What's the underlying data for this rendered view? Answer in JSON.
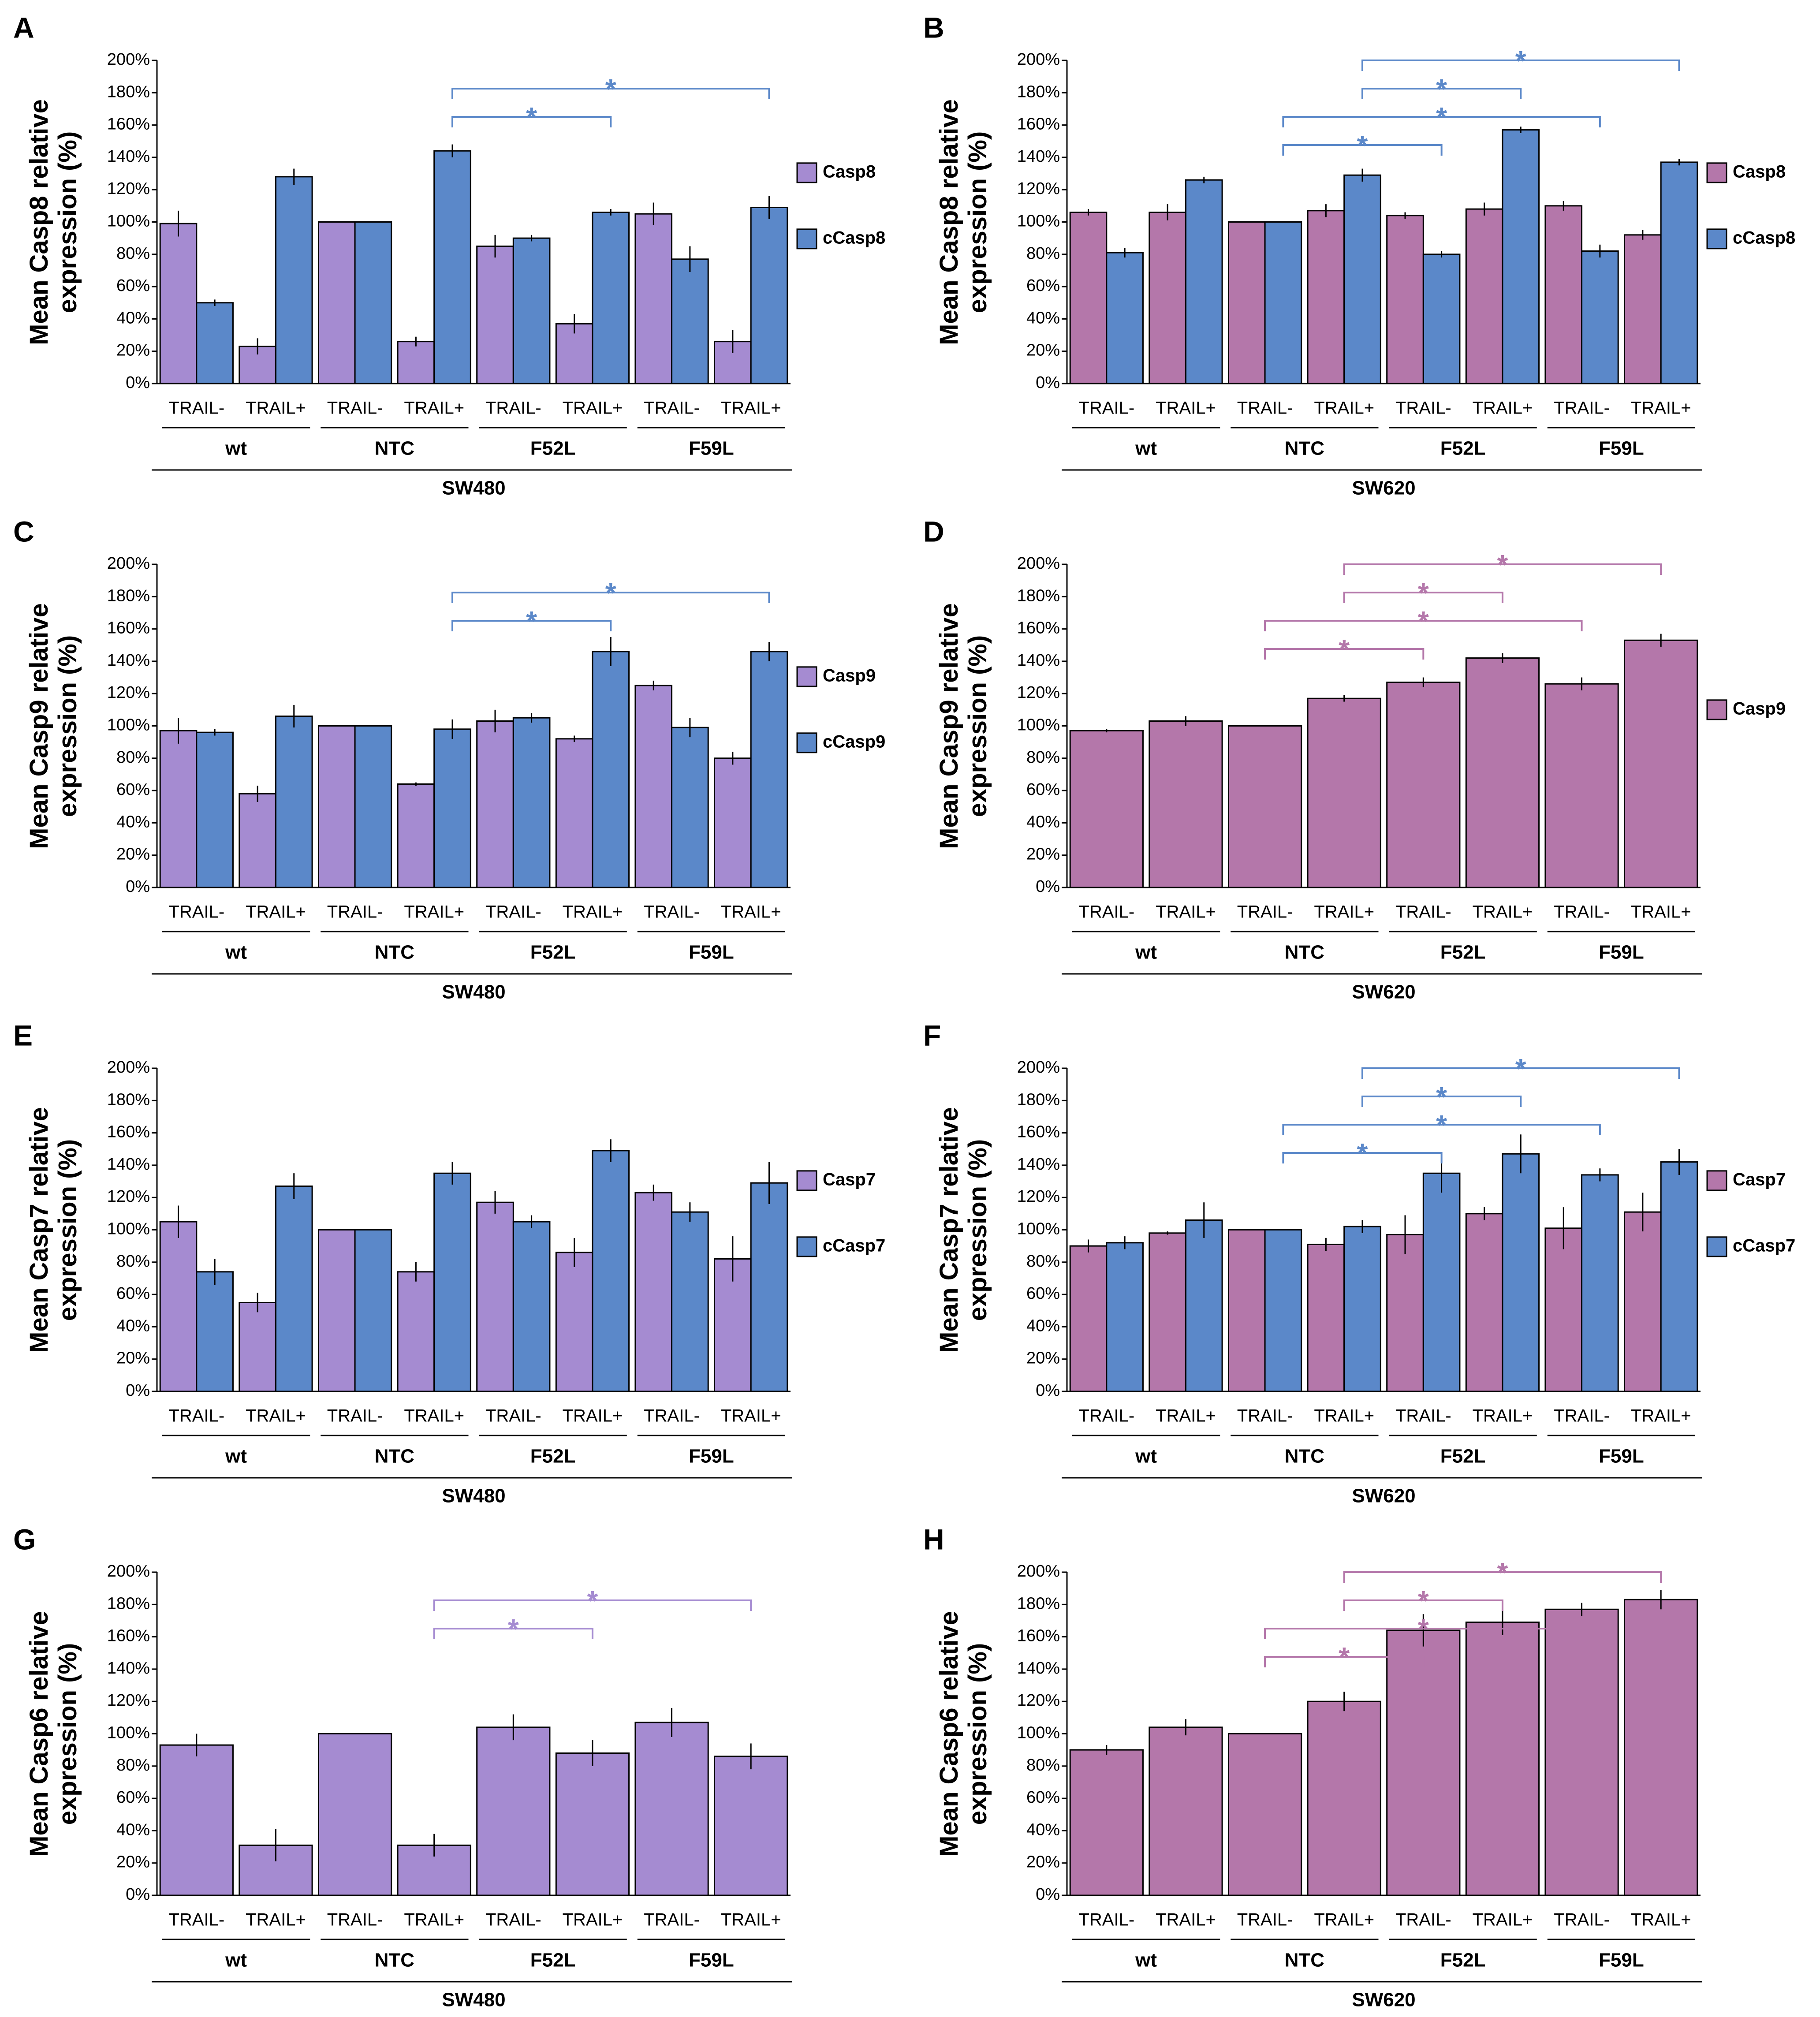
{
  "chart_data": [
    {
      "type": "bar",
      "panel": "A",
      "ylabel": "Mean Casp8 relative expression (%)",
      "xlabel": "SW480",
      "categories": [
        "TRAIL-",
        "TRAIL+",
        "TRAIL-",
        "TRAIL+",
        "TRAIL-",
        "TRAIL+",
        "TRAIL-",
        "TRAIL+"
      ],
      "groups": [
        "wt",
        "NTC",
        "F52L",
        "F59L"
      ],
      "legend": true,
      "series": [
        {
          "name": "Casp8",
          "color": "#a58bd1",
          "values": [
            99,
            23,
            100,
            26,
            85,
            37,
            105,
            26
          ],
          "errors": [
            8,
            5,
            0,
            3,
            7,
            6,
            7,
            7
          ]
        },
        {
          "name": "cCasp8",
          "color": "#5b88c9",
          "values": [
            50,
            128,
            100,
            144,
            90,
            106,
            77,
            109
          ],
          "errors": [
            2,
            5,
            0,
            4,
            2,
            2,
            8,
            7
          ]
        }
      ],
      "ylim": [
        0,
        200
      ],
      "yticks": [
        {
          "value": 0,
          "label": "0%"
        },
        {
          "value": 20,
          "label": "20%"
        },
        {
          "value": 40,
          "label": "40%"
        },
        {
          "value": 60,
          "label": "60%"
        },
        {
          "value": 80,
          "label": "80%"
        },
        {
          "value": 100,
          "label": "100%"
        },
        {
          "value": 120,
          "label": "120%"
        },
        {
          "value": 140,
          "label": "140%"
        },
        {
          "value": 160,
          "label": "160%"
        },
        {
          "value": 180,
          "label": "180%"
        },
        {
          "value": 200,
          "label": "200%"
        }
      ],
      "significance": [
        {
          "series": 1,
          "from": 3,
          "to": 5,
          "label": "*"
        },
        {
          "series": 1,
          "from": 3,
          "to": 7,
          "label": "*"
        }
      ]
    },
    {
      "type": "bar",
      "panel": "B",
      "ylabel": "Mean Casp8 relative expression (%)",
      "xlabel": "SW620",
      "categories": [
        "TRAIL-",
        "TRAIL+",
        "TRAIL-",
        "TRAIL+",
        "TRAIL-",
        "TRAIL+",
        "TRAIL-",
        "TRAIL+"
      ],
      "groups": [
        "wt",
        "NTC",
        "F52L",
        "F59L"
      ],
      "legend": true,
      "series": [
        {
          "name": "Casp8",
          "color": "#b477aa",
          "values": [
            106,
            106,
            100,
            107,
            104,
            108,
            110,
            92
          ],
          "errors": [
            2,
            5,
            0,
            4,
            2,
            4,
            3,
            3
          ]
        },
        {
          "name": "cCasp8",
          "color": "#5b88c9",
          "values": [
            81,
            126,
            100,
            129,
            80,
            157,
            82,
            137
          ],
          "errors": [
            3,
            2,
            0,
            4,
            2,
            2,
            4,
            2
          ]
        }
      ],
      "ylim": [
        0,
        200
      ],
      "yticks": [
        {
          "value": 0,
          "label": "0%"
        },
        {
          "value": 20,
          "label": "20%"
        },
        {
          "value": 40,
          "label": "40%"
        },
        {
          "value": 60,
          "label": "60%"
        },
        {
          "value": 80,
          "label": "80%"
        },
        {
          "value": 100,
          "label": "100%"
        },
        {
          "value": 120,
          "label": "120%"
        },
        {
          "value": 140,
          "label": "140%"
        },
        {
          "value": 160,
          "label": "160%"
        },
        {
          "value": 180,
          "label": "180%"
        },
        {
          "value": 200,
          "label": "200%"
        }
      ],
      "significance": [
        {
          "series": 1,
          "from": 2,
          "to": 4,
          "label": "*"
        },
        {
          "series": 1,
          "from": 2,
          "to": 6,
          "label": "*"
        },
        {
          "series": 1,
          "from": 3,
          "to": 5,
          "label": "*"
        },
        {
          "series": 1,
          "from": 3,
          "to": 7,
          "label": "*"
        }
      ]
    },
    {
      "type": "bar",
      "panel": "C",
      "ylabel": "Mean Casp9 relative expression (%)",
      "xlabel": "SW480",
      "categories": [
        "TRAIL-",
        "TRAIL+",
        "TRAIL-",
        "TRAIL+",
        "TRAIL-",
        "TRAIL+",
        "TRAIL-",
        "TRAIL+"
      ],
      "groups": [
        "wt",
        "NTC",
        "F52L",
        "F59L"
      ],
      "legend": true,
      "series": [
        {
          "name": "Casp9",
          "color": "#a58bd1",
          "values": [
            97,
            58,
            100,
            64,
            103,
            92,
            125,
            80
          ],
          "errors": [
            8,
            5,
            0,
            1,
            7,
            2,
            3,
            4
          ]
        },
        {
          "name": "cCasp9",
          "color": "#5b88c9",
          "values": [
            96,
            106,
            100,
            98,
            105,
            146,
            99,
            146
          ],
          "errors": [
            2,
            7,
            0,
            6,
            3,
            9,
            6,
            6
          ]
        }
      ],
      "ylim": [
        0,
        200
      ],
      "yticks": [
        {
          "value": 0,
          "label": "0%"
        },
        {
          "value": 20,
          "label": "20%"
        },
        {
          "value": 40,
          "label": "40%"
        },
        {
          "value": 60,
          "label": "60%"
        },
        {
          "value": 80,
          "label": "80%"
        },
        {
          "value": 100,
          "label": "100%"
        },
        {
          "value": 120,
          "label": "120%"
        },
        {
          "value": 140,
          "label": "140%"
        },
        {
          "value": 160,
          "label": "160%"
        },
        {
          "value": 180,
          "label": "180%"
        },
        {
          "value": 200,
          "label": "200%"
        }
      ],
      "significance": [
        {
          "series": 1,
          "from": 3,
          "to": 5,
          "label": "*"
        },
        {
          "series": 1,
          "from": 3,
          "to": 7,
          "label": "*"
        }
      ]
    },
    {
      "type": "bar",
      "panel": "D",
      "ylabel": "Mean Casp9 relative expression (%)",
      "xlabel": "SW620",
      "categories": [
        "TRAIL-",
        "TRAIL+",
        "TRAIL-",
        "TRAIL+",
        "TRAIL-",
        "TRAIL+",
        "TRAIL-",
        "TRAIL+"
      ],
      "groups": [
        "wt",
        "NTC",
        "F52L",
        "F59L"
      ],
      "legend": true,
      "series": [
        {
          "name": "Casp9",
          "color": "#b477aa",
          "values": [
            97,
            103,
            100,
            117,
            127,
            142,
            126,
            153
          ],
          "errors": [
            1,
            3,
            0,
            2,
            3,
            3,
            4,
            4
          ]
        }
      ],
      "ylim": [
        0,
        200
      ],
      "yticks": [
        {
          "value": 0,
          "label": "0%"
        },
        {
          "value": 20,
          "label": "20%"
        },
        {
          "value": 40,
          "label": "40%"
        },
        {
          "value": 60,
          "label": "60%"
        },
        {
          "value": 80,
          "label": "80%"
        },
        {
          "value": 100,
          "label": "100%"
        },
        {
          "value": 120,
          "label": "120%"
        },
        {
          "value": 140,
          "label": "140%"
        },
        {
          "value": 160,
          "label": "160%"
        },
        {
          "value": 180,
          "label": "180%"
        },
        {
          "value": 200,
          "label": "200%"
        }
      ],
      "significance": [
        {
          "series": 0,
          "from": 2,
          "to": 4,
          "label": "*"
        },
        {
          "series": 0,
          "from": 2,
          "to": 6,
          "label": "*"
        },
        {
          "series": 0,
          "from": 3,
          "to": 5,
          "label": "*"
        },
        {
          "series": 0,
          "from": 3,
          "to": 7,
          "label": "*"
        }
      ]
    },
    {
      "type": "bar",
      "panel": "E",
      "ylabel": "Mean Casp7 relative expression (%)",
      "xlabel": "SW480",
      "categories": [
        "TRAIL-",
        "TRAIL+",
        "TRAIL-",
        "TRAIL+",
        "TRAIL-",
        "TRAIL+",
        "TRAIL-",
        "TRAIL+"
      ],
      "groups": [
        "wt",
        "NTC",
        "F52L",
        "F59L"
      ],
      "legend": true,
      "series": [
        {
          "name": "Casp7",
          "color": "#a58bd1",
          "values": [
            105,
            55,
            100,
            74,
            117,
            86,
            123,
            82
          ],
          "errors": [
            10,
            6,
            0,
            6,
            7,
            9,
            5,
            14
          ]
        },
        {
          "name": "cCasp7",
          "color": "#5b88c9",
          "values": [
            74,
            127,
            100,
            135,
            105,
            149,
            111,
            129
          ],
          "errors": [
            8,
            8,
            0,
            7,
            4,
            7,
            6,
            13
          ]
        }
      ],
      "ylim": [
        0,
        200
      ],
      "yticks": [
        {
          "value": 0,
          "label": "0%"
        },
        {
          "value": 20,
          "label": "20%"
        },
        {
          "value": 40,
          "label": "40%"
        },
        {
          "value": 60,
          "label": "60%"
        },
        {
          "value": 80,
          "label": "80%"
        },
        {
          "value": 100,
          "label": "100%"
        },
        {
          "value": 120,
          "label": "120%"
        },
        {
          "value": 140,
          "label": "140%"
        },
        {
          "value": 160,
          "label": "160%"
        },
        {
          "value": 180,
          "label": "180%"
        },
        {
          "value": 200,
          "label": "200%"
        }
      ],
      "significance": []
    },
    {
      "type": "bar",
      "panel": "F",
      "ylabel": "Mean Casp7 relative expression (%)",
      "xlabel": "SW620",
      "categories": [
        "TRAIL-",
        "TRAIL+",
        "TRAIL-",
        "TRAIL+",
        "TRAIL-",
        "TRAIL+",
        "TRAIL-",
        "TRAIL+"
      ],
      "groups": [
        "wt",
        "NTC",
        "F52L",
        "F59L"
      ],
      "legend": true,
      "series": [
        {
          "name": "Casp7",
          "color": "#b477aa",
          "values": [
            90,
            98,
            100,
            91,
            97,
            110,
            101,
            111
          ],
          "errors": [
            4,
            1,
            0,
            4,
            12,
            4,
            13,
            12
          ]
        },
        {
          "name": "cCasp7",
          "color": "#5b88c9",
          "values": [
            92,
            106,
            100,
            102,
            135,
            147,
            134,
            142
          ],
          "errors": [
            4,
            11,
            0,
            4,
            12,
            12,
            4,
            8
          ]
        }
      ],
      "ylim": [
        0,
        200
      ],
      "yticks": [
        {
          "value": 0,
          "label": "0%"
        },
        {
          "value": 20,
          "label": "20%"
        },
        {
          "value": 40,
          "label": "40%"
        },
        {
          "value": 60,
          "label": "60%"
        },
        {
          "value": 80,
          "label": "80%"
        },
        {
          "value": 100,
          "label": "100%"
        },
        {
          "value": 120,
          "label": "120%"
        },
        {
          "value": 140,
          "label": "140%"
        },
        {
          "value": 160,
          "label": "160%"
        },
        {
          "value": 180,
          "label": "180%"
        },
        {
          "value": 200,
          "label": "200%"
        }
      ],
      "significance": [
        {
          "series": 1,
          "from": 2,
          "to": 4,
          "label": "*"
        },
        {
          "series": 1,
          "from": 2,
          "to": 6,
          "label": "*"
        },
        {
          "series": 1,
          "from": 3,
          "to": 5,
          "label": "*"
        },
        {
          "series": 1,
          "from": 3,
          "to": 7,
          "label": "*"
        }
      ]
    },
    {
      "type": "bar",
      "panel": "G",
      "ylabel": "Mean Casp6 relative expression (%)",
      "xlabel": "SW480",
      "categories": [
        "TRAIL-",
        "TRAIL+",
        "TRAIL-",
        "TRAIL+",
        "TRAIL-",
        "TRAIL+",
        "TRAIL-",
        "TRAIL+"
      ],
      "groups": [
        "wt",
        "NTC",
        "F52L",
        "F59L"
      ],
      "legend": false,
      "series": [
        {
          "name": "Casp6",
          "color": "#a58bd1",
          "values": [
            93,
            31,
            100,
            31,
            104,
            88,
            107,
            86
          ],
          "errors": [
            7,
            10,
            0,
            7,
            8,
            8,
            9,
            8
          ]
        }
      ],
      "ylim": [
        0,
        200
      ],
      "yticks": [
        {
          "value": 0,
          "label": "0%"
        },
        {
          "value": 20,
          "label": "20%"
        },
        {
          "value": 40,
          "label": "40%"
        },
        {
          "value": 60,
          "label": "60%"
        },
        {
          "value": 80,
          "label": "80%"
        },
        {
          "value": 100,
          "label": "100%"
        },
        {
          "value": 120,
          "label": "120%"
        },
        {
          "value": 140,
          "label": "140%"
        },
        {
          "value": 160,
          "label": "160%"
        },
        {
          "value": 180,
          "label": "180%"
        },
        {
          "value": 200,
          "label": "200%"
        }
      ],
      "significance": [
        {
          "series": 0,
          "from": 3,
          "to": 5,
          "label": "*"
        },
        {
          "series": 0,
          "from": 3,
          "to": 7,
          "label": "*"
        }
      ]
    },
    {
      "type": "bar",
      "panel": "H",
      "ylabel": "Mean Casp6 relative expression (%)",
      "xlabel": "SW620",
      "categories": [
        "TRAIL-",
        "TRAIL+",
        "TRAIL-",
        "TRAIL+",
        "TRAIL-",
        "TRAIL+",
        "TRAIL-",
        "TRAIL+"
      ],
      "groups": [
        "wt",
        "NTC",
        "F52L",
        "F59L"
      ],
      "legend": false,
      "series": [
        {
          "name": "Casp6",
          "color": "#b477aa",
          "values": [
            90,
            104,
            100,
            120,
            164,
            169,
            177,
            183
          ],
          "errors": [
            3,
            5,
            0,
            6,
            10,
            8,
            4,
            6
          ]
        }
      ],
      "ylim": [
        0,
        200
      ],
      "yticks": [
        {
          "value": 0,
          "label": "0%"
        },
        {
          "value": 20,
          "label": "20%"
        },
        {
          "value": 40,
          "label": "40%"
        },
        {
          "value": 60,
          "label": "60%"
        },
        {
          "value": 80,
          "label": "80%"
        },
        {
          "value": 100,
          "label": "100%"
        },
        {
          "value": 120,
          "label": "120%"
        },
        {
          "value": 140,
          "label": "140%"
        },
        {
          "value": 160,
          "label": "160%"
        },
        {
          "value": 180,
          "label": "180%"
        },
        {
          "value": 200,
          "label": "200%"
        }
      ],
      "significance": [
        {
          "series": 0,
          "from": 2,
          "to": 4,
          "label": "*"
        },
        {
          "series": 0,
          "from": 2,
          "to": 6,
          "label": "*"
        },
        {
          "series": 0,
          "from": 3,
          "to": 5,
          "label": "*"
        },
        {
          "series": 0,
          "from": 3,
          "to": 7,
          "label": "*"
        }
      ]
    }
  ]
}
